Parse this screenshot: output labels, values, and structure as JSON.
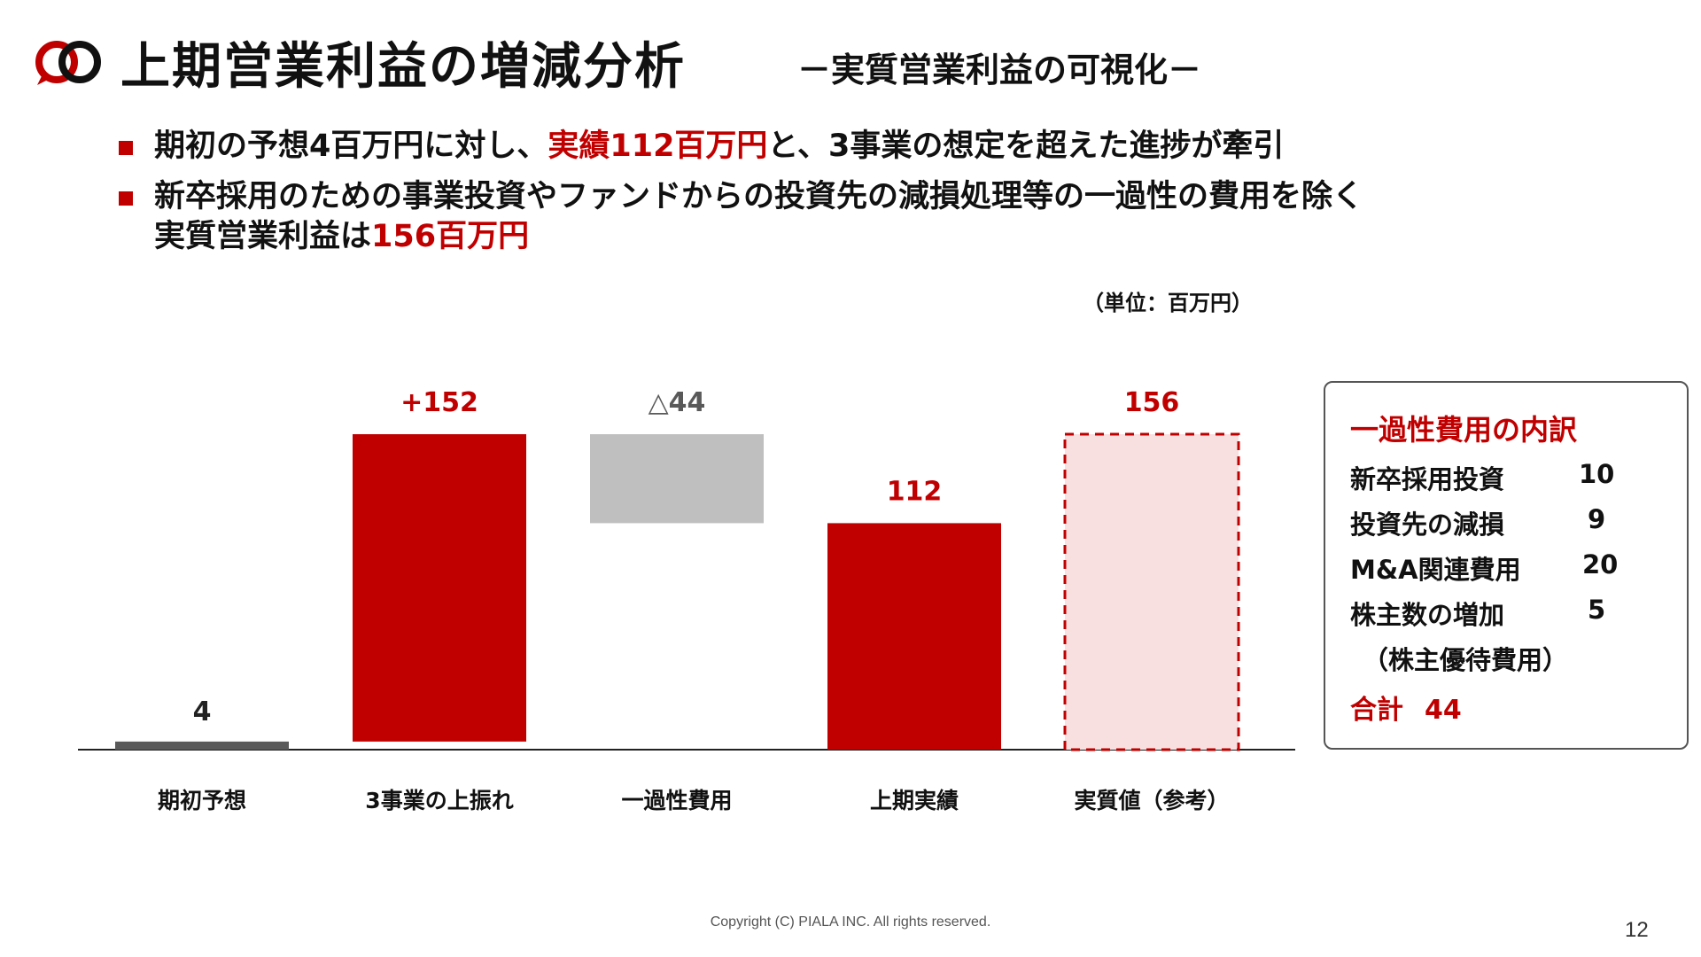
{
  "header": {
    "title": "上期営業利益の増減分析",
    "subtitle": "－実質営業利益の可視化－",
    "brand_color": "#c00000"
  },
  "bullets": [
    {
      "pre": "期初の予想4百万円に対し、",
      "highlight": "実績112百万円",
      "post": "と、3事業の想定を超えた進捗が牽引"
    },
    {
      "line1": "新卒採用のための事業投資やファンドからの投資先の減損処理等の一過性の費用を除く",
      "line2_pre": "実質営業利益は",
      "line2_highlight": "156百万円"
    }
  ],
  "unit_label": "（単位：百万円）",
  "chart_data": {
    "type": "bar",
    "subtype": "waterfall",
    "categories": [
      "期初予想",
      "3事業の上振れ",
      "一過性費用",
      "上期実績",
      "実質値（参考）"
    ],
    "bars": [
      {
        "category": "期初予想",
        "kind": "total",
        "base": 0,
        "value": 4,
        "label": "4",
        "color": "#595959",
        "label_color": "#222222"
      },
      {
        "category": "3事業の上振れ",
        "kind": "increase",
        "base": 4,
        "value": 152,
        "label": "+152",
        "color": "#c00000",
        "label_color": "#c00000"
      },
      {
        "category": "一過性費用",
        "kind": "decrease",
        "base": 112,
        "value": 44,
        "label": "△44",
        "color": "#bfbfbf",
        "label_color": "#595959"
      },
      {
        "category": "上期実績",
        "kind": "total",
        "base": 0,
        "value": 112,
        "label": "112",
        "color": "#c00000",
        "label_color": "#c00000"
      },
      {
        "category": "実質値（参考）",
        "kind": "reference",
        "base": 0,
        "value": 156,
        "label": "156",
        "color": "#f8e0e0",
        "label_color": "#c00000",
        "dashed": true
      }
    ],
    "ylim": [
      0,
      156
    ]
  },
  "breakdown": {
    "title": "一過性費用の内訳",
    "items": [
      {
        "label": "新卒採用投資",
        "value": "10"
      },
      {
        "label": "投資先の減損",
        "value": "9"
      },
      {
        "label": "M&A関連費用",
        "value": "20"
      },
      {
        "label": "株主数の増加",
        "value": "5"
      }
    ],
    "note": "（株主優待費用）",
    "total_label": "合計",
    "total_value": "44"
  },
  "footer": {
    "copyright": "Copyright (C) PIALA INC. All rights reserved.",
    "page": "12"
  }
}
